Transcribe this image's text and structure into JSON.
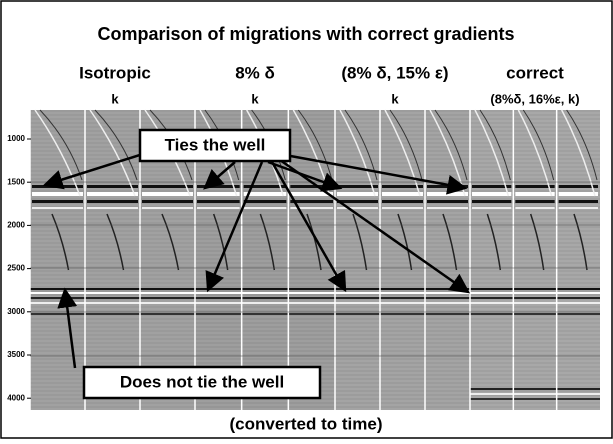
{
  "header": {
    "title": "Comparison of migrations with correct gradients"
  },
  "columns": [
    {
      "label": "Isotropic",
      "sublabel": "k"
    },
    {
      "label": "8% δ",
      "sublabel": "k"
    },
    {
      "label": "(8% δ, 15% ε)",
      "sublabel": "k"
    },
    {
      "label": "correct",
      "sublabel": "(8%δ, 16%ε, k)"
    }
  ],
  "axis": {
    "ticks": [
      "1000",
      "1500",
      "2000",
      "2500",
      "3000",
      "3500",
      "4000"
    ]
  },
  "annotations": {
    "ties": "Ties the well",
    "does_not_tie": "Does not tie the well"
  },
  "caption": "(converted to time)"
}
